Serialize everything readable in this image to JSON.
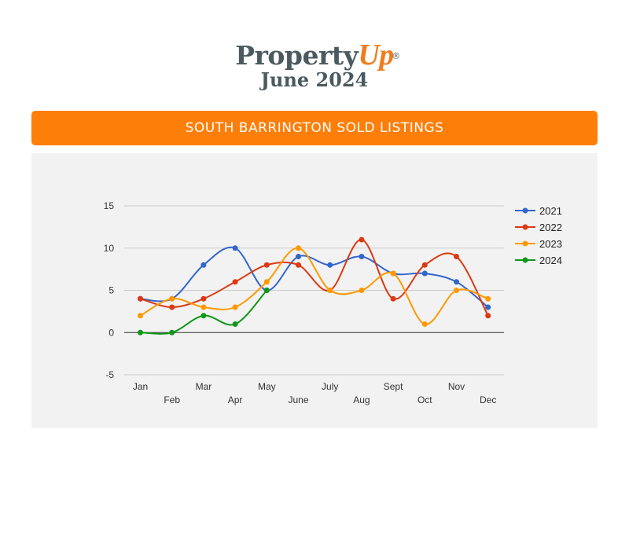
{
  "header": {
    "brand_main": "Property",
    "brand_accent": "Up",
    "registered_mark": "®",
    "edition": "June 2024"
  },
  "banner": {
    "title": "SOUTH BARRINGTON SOLD LISTINGS"
  },
  "colors": {
    "brand_orange": "#fd7e08",
    "brand_slate": "#4a5a5f"
  },
  "chart_data": {
    "type": "line",
    "smooth": true,
    "categories": [
      "Jan",
      "Feb",
      "Mar",
      "Apr",
      "May",
      "June",
      "July",
      "Aug",
      "Sept",
      "Oct",
      "Nov",
      "Dec"
    ],
    "ylim": [
      -5,
      15
    ],
    "yticks": [
      -5,
      0,
      5,
      10,
      15
    ],
    "grid": true,
    "legend_position": "right",
    "series": [
      {
        "name": "2021",
        "color": "#3366cc",
        "values": [
          4,
          4,
          8,
          10,
          5,
          9,
          8,
          9,
          7,
          7,
          6,
          3
        ]
      },
      {
        "name": "2022",
        "color": "#dc3912",
        "values": [
          4,
          3,
          4,
          6,
          8,
          8,
          5,
          11,
          4,
          8,
          9,
          2
        ]
      },
      {
        "name": "2023",
        "color": "#ff9900",
        "values": [
          2,
          4,
          3,
          3,
          6,
          10,
          5,
          5,
          7,
          1,
          5,
          4
        ]
      },
      {
        "name": "2024",
        "color": "#109618",
        "values": [
          0,
          0,
          2,
          1,
          5,
          null,
          null,
          null,
          null,
          null,
          null,
          null
        ]
      }
    ]
  }
}
